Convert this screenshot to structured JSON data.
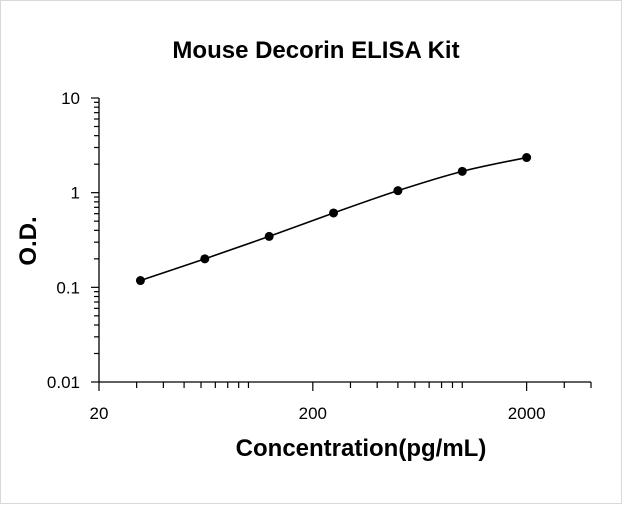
{
  "chart_data": {
    "type": "line",
    "title": "Mouse Decorin ELISA Kit",
    "xlabel": "Concentration(pg/mL)",
    "ylabel": "O.D.",
    "xscale": "log",
    "yscale": "log",
    "xlim": [
      20,
      4000
    ],
    "ylim": [
      0.01,
      10
    ],
    "x_ticks": [
      20,
      200,
      2000
    ],
    "x_tick_labels": [
      "20",
      "200",
      "2000"
    ],
    "y_ticks": [
      0.01,
      0.1,
      1,
      10
    ],
    "y_tick_labels": [
      "0.01",
      "0.1",
      "1",
      "10"
    ],
    "grid": false,
    "legend": "none",
    "series": [
      {
        "x": [
          31.25,
          62.5,
          125,
          250,
          500,
          1000,
          2000
        ],
        "y": [
          0.118,
          0.2,
          0.345,
          0.61,
          1.05,
          1.68,
          2.35
        ],
        "color": "#000000",
        "marker": "circle",
        "smooth": true
      }
    ]
  }
}
